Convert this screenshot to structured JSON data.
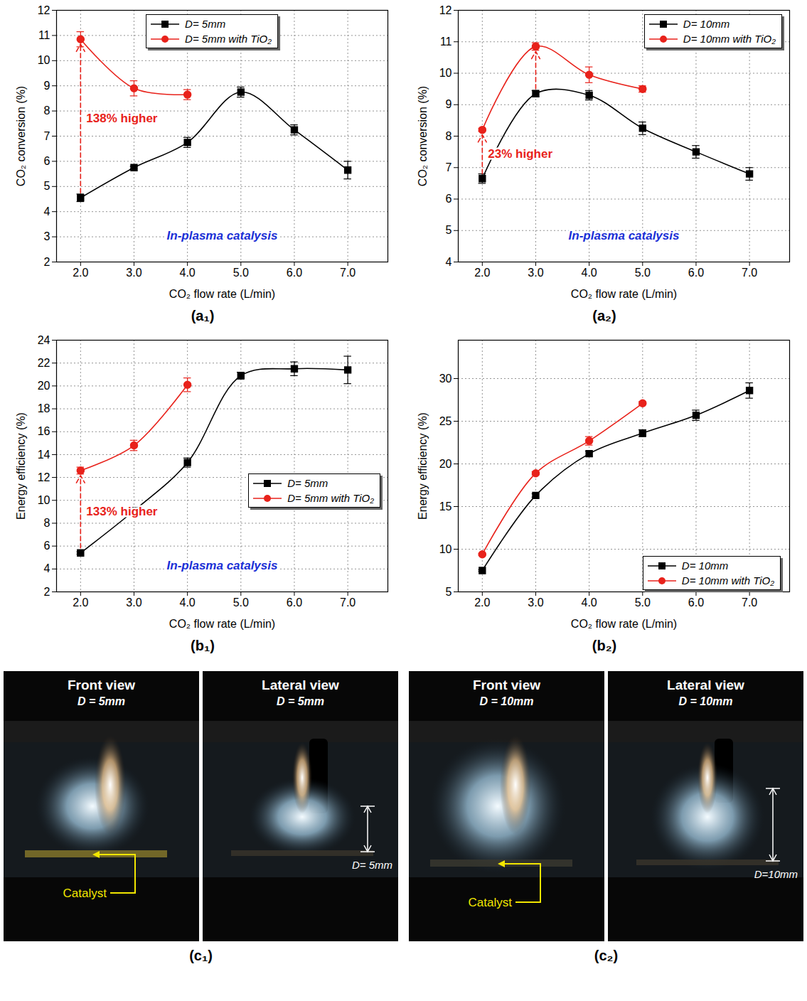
{
  "chart_data": [
    {
      "type": "line",
      "title": "(a₁)",
      "xlabel": "CO₂ flow rate (L/min)",
      "ylabel": "CO₂ conversion (%)",
      "x": [
        2,
        3,
        4,
        5,
        6,
        7
      ],
      "xlim": [
        1.55,
        7.75
      ],
      "xticks": [
        2,
        3,
        4,
        5,
        6,
        7
      ],
      "ylim": [
        2,
        12
      ],
      "yticks": [
        2,
        3,
        4,
        5,
        6,
        7,
        8,
        9,
        10,
        11,
        12
      ],
      "grid": true,
      "legend": "top",
      "series": [
        {
          "name": "D= 5mm",
          "color": "#000000",
          "marker": "square",
          "values": [
            4.55,
            5.75,
            6.75,
            8.75,
            7.25,
            5.65
          ],
          "errors": [
            0.15,
            0.05,
            0.2,
            0.2,
            0.2,
            0.35
          ]
        },
        {
          "name": "D= 5mm with TiO₂",
          "color": "#e8221b",
          "marker": "circle",
          "values": [
            10.85,
            8.9,
            8.65,
            null,
            null,
            null
          ],
          "errors": [
            0.3,
            0.3,
            0.2,
            null,
            null,
            null
          ]
        }
      ],
      "annotations": [
        {
          "x": 2,
          "text": "138% higher"
        },
        {
          "text": "In-plasma catalysis"
        }
      ]
    },
    {
      "type": "line",
      "title": "(a₂)",
      "xlabel": "CO₂ flow rate (L/min)",
      "ylabel": "CO₂ conversion (%)",
      "x": [
        2,
        3,
        4,
        5,
        6,
        7
      ],
      "xlim": [
        1.55,
        7.75
      ],
      "xticks": [
        2,
        3,
        4,
        5,
        6,
        7
      ],
      "ylim": [
        4,
        12
      ],
      "yticks": [
        4,
        5,
        6,
        7,
        8,
        9,
        10,
        11,
        12
      ],
      "grid": true,
      "legend": "top right",
      "series": [
        {
          "name": "D= 10mm",
          "color": "#000000",
          "marker": "square",
          "values": [
            6.65,
            9.35,
            9.3,
            8.25,
            7.5,
            6.8
          ],
          "errors": [
            0.15,
            0.1,
            0.15,
            0.2,
            0.2,
            0.2
          ]
        },
        {
          "name": "D= 10mm with TiO₂",
          "color": "#e8221b",
          "marker": "circle",
          "values": [
            8.2,
            10.85,
            9.95,
            9.5,
            null,
            null
          ],
          "errors": [
            0.05,
            0.12,
            0.25,
            0.1,
            null,
            null
          ]
        }
      ],
      "annotations": [
        {
          "x": 2,
          "text": "23% higher"
        },
        {
          "x": 3
        },
        {
          "text": "In-plasma catalysis"
        }
      ]
    },
    {
      "type": "line",
      "title": "(b₁)",
      "xlabel": "CO₂ flow rate (L/min)",
      "ylabel": "Energy efficiency (%)",
      "x": [
        2,
        3,
        4,
        5,
        6,
        7
      ],
      "xlim": [
        1.55,
        7.75
      ],
      "xticks": [
        2,
        3,
        4,
        5,
        6,
        7
      ],
      "ylim": [
        2,
        24
      ],
      "yticks": [
        2,
        4,
        6,
        8,
        10,
        12,
        14,
        16,
        18,
        20,
        22,
        24
      ],
      "grid": true,
      "legend": "center right",
      "series": [
        {
          "name": "D= 5mm",
          "color": "#000000",
          "marker": "square",
          "values": [
            5.4,
            9.1,
            13.3,
            20.9,
            21.5,
            21.4
          ],
          "errors": [
            0.1,
            0.15,
            0.4,
            0.3,
            0.6,
            1.2
          ]
        },
        {
          "name": "D= 5mm with TiO₂",
          "color": "#e8221b",
          "marker": "circle",
          "values": [
            12.6,
            14.8,
            20.1,
            null,
            null,
            null
          ],
          "errors": [
            0.3,
            0.45,
            0.6,
            null,
            null,
            null
          ]
        }
      ],
      "annotations": [
        {
          "x": 2,
          "text": "133% higher"
        },
        {
          "text": "In-plasma catalysis"
        }
      ]
    },
    {
      "type": "line",
      "title": "(b₂)",
      "xlabel": "CO₂ flow rate (L/min)",
      "ylabel": "Energy efficiency (%)",
      "x": [
        2,
        3,
        4,
        5,
        6,
        7
      ],
      "xlim": [
        1.55,
        7.75
      ],
      "xticks": [
        2,
        3,
        4,
        5,
        6,
        7
      ],
      "ylim": [
        5,
        34.5
      ],
      "yticks": [
        5,
        10,
        15,
        20,
        25,
        30
      ],
      "grid": true,
      "legend": "bottom right",
      "series": [
        {
          "name": "D= 10mm",
          "color": "#000000",
          "marker": "square",
          "values": [
            7.5,
            16.3,
            21.2,
            23.6,
            25.7,
            28.6
          ],
          "errors": [
            0.1,
            0.2,
            0.3,
            0.4,
            0.6,
            0.9
          ]
        },
        {
          "name": "D= 10mm with TiO₂",
          "color": "#e8221b",
          "marker": "circle",
          "values": [
            9.4,
            18.9,
            22.7,
            27.1,
            null,
            null
          ],
          "errors": [
            0.1,
            0.2,
            0.5,
            0.2,
            null,
            null
          ]
        }
      ],
      "annotations": []
    }
  ],
  "photos": [
    {
      "title": "(c₁)",
      "views": [
        {
          "title": "Front view",
          "subtitle": "D = 5mm",
          "callout": "Catalyst"
        },
        {
          "title": "Lateral view",
          "subtitle": "D = 5mm",
          "dimension": "D= 5mm"
        }
      ]
    },
    {
      "title": "(c₂)",
      "views": [
        {
          "title": "Front view",
          "subtitle": "D = 10mm",
          "callout": "Catalyst"
        },
        {
          "title": "Lateral view",
          "subtitle": "D = 10mm",
          "dimension": "D=10mm"
        }
      ]
    }
  ]
}
